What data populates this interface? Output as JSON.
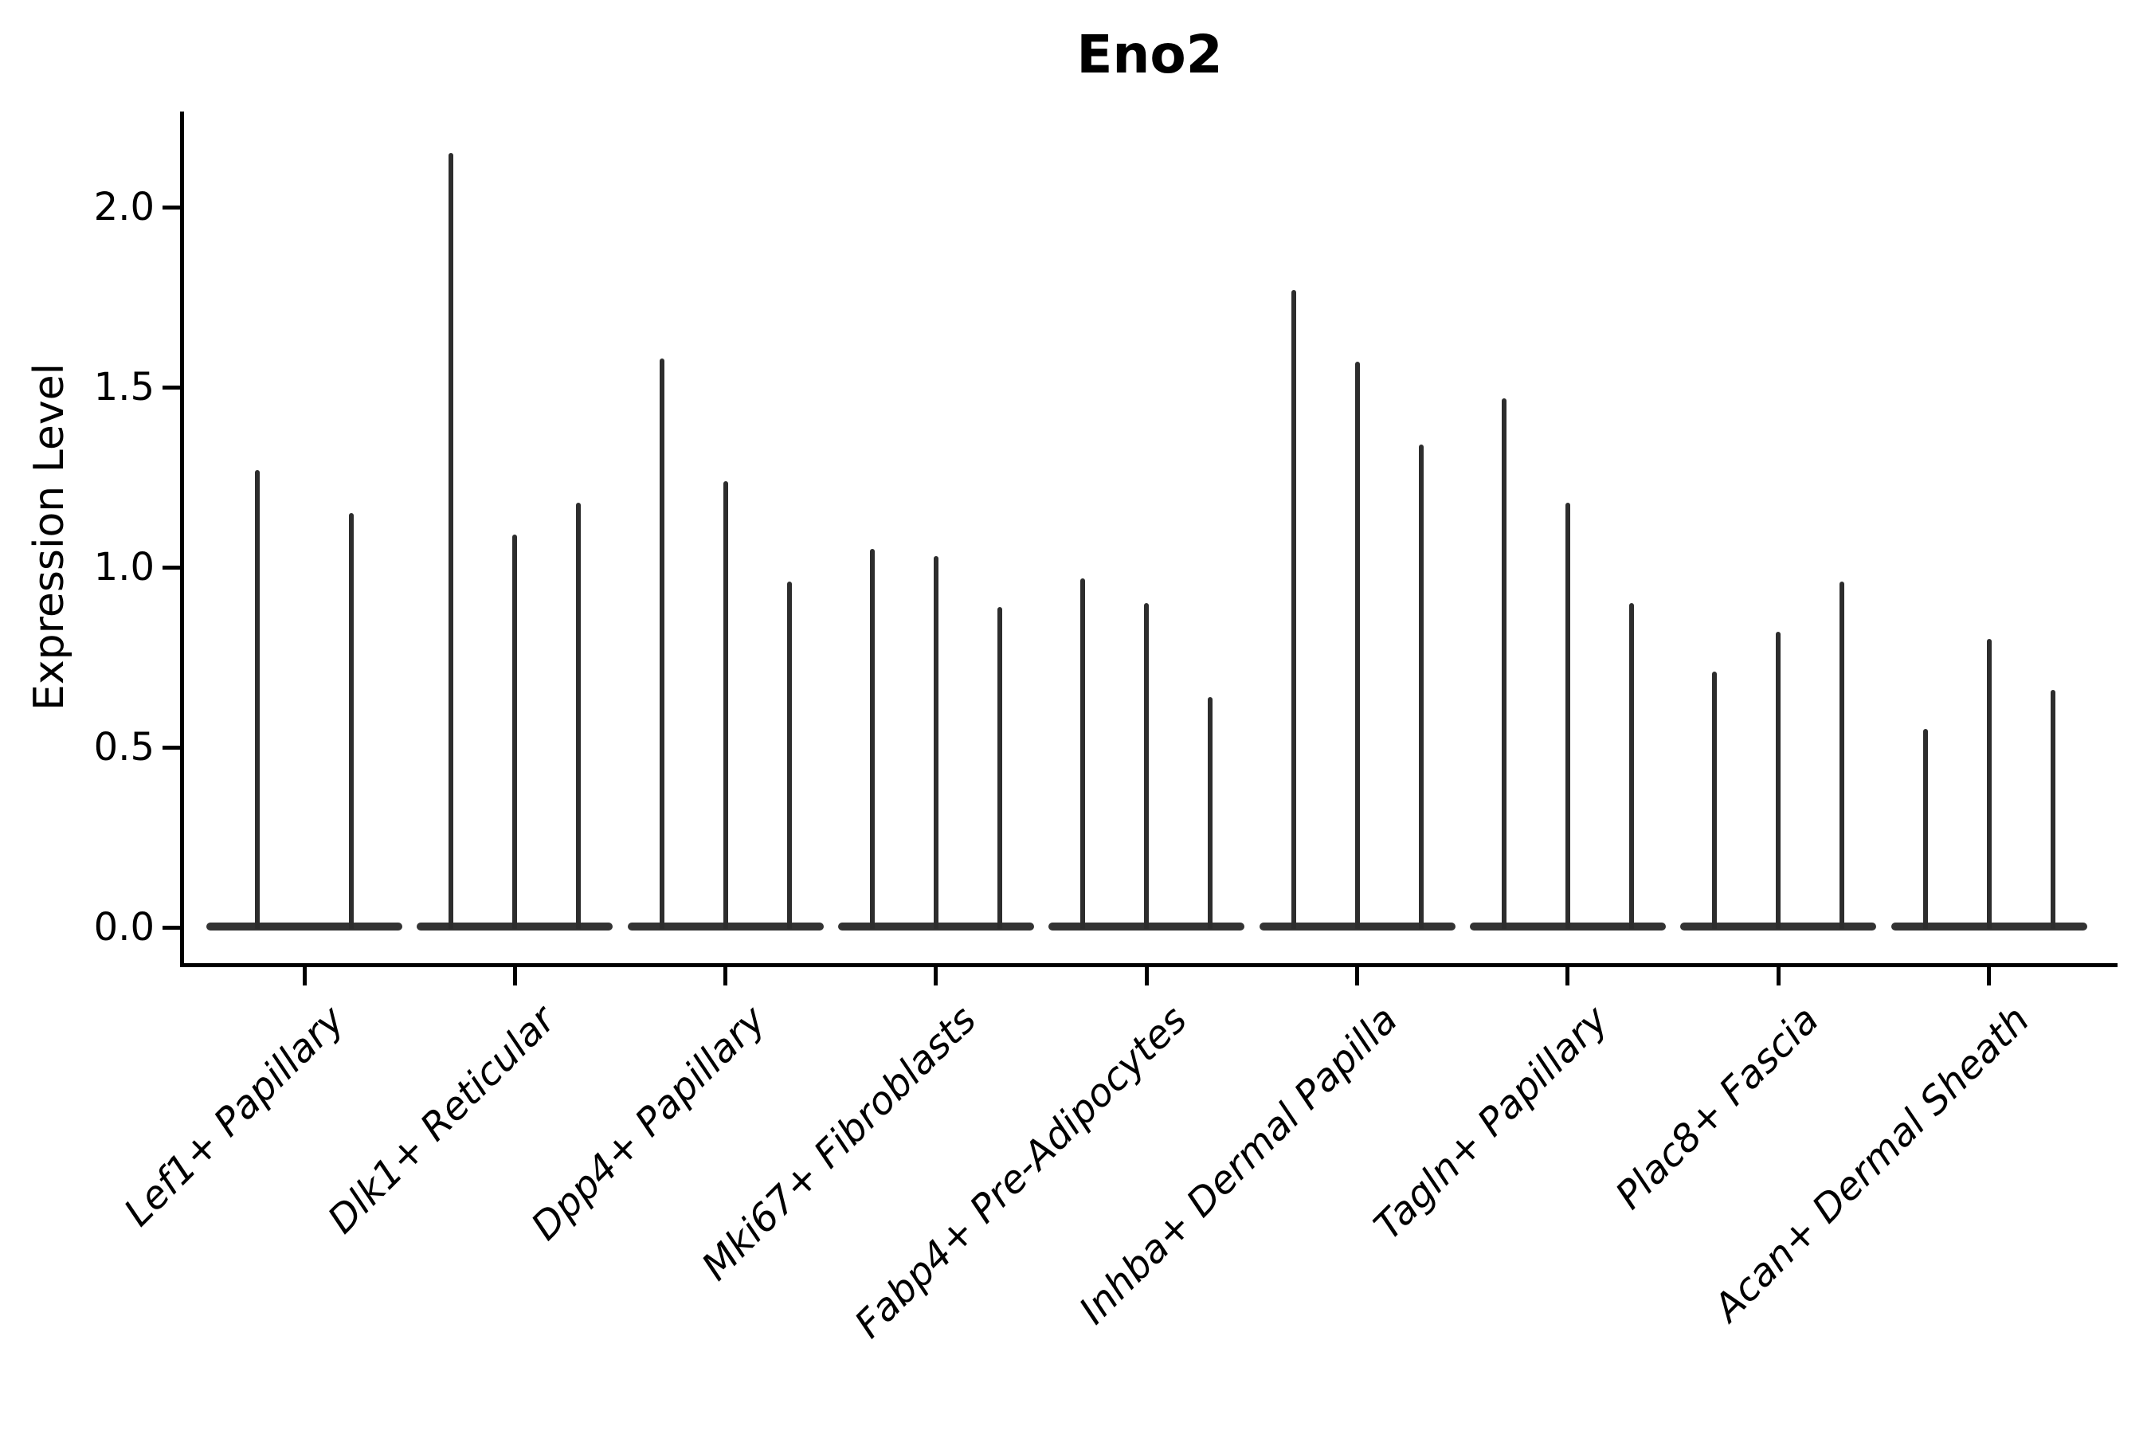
{
  "figure": {
    "title": "Eno2",
    "ylabel": "Expression Level"
  },
  "chart_data": {
    "type": "violin",
    "title": "Eno2",
    "xlabel": "",
    "ylabel": "Expression Level",
    "ylim": [
      0,
      2.27
    ],
    "grid": false,
    "legend": "none",
    "violin_color": "#2d2d2d",
    "axis_color": "#000000",
    "ytick_labels": [
      "0.0",
      "0.5",
      "1.0",
      "1.5",
      "2.0"
    ],
    "ytick_values": [
      0,
      0.5,
      1.0,
      1.5,
      2.0
    ],
    "categories": [
      "Lef1+ Papillary",
      "Dlk1+ Reticular",
      "Dpp4+ Papillary",
      "Mki67+ Fibroblasts",
      "Fabp4+ Pre-Adipocytes",
      "Inhba+ Dermal Papilla",
      "Tagln+ Papillary",
      "Plac8+ Fascia",
      "Acan+ Dermal Sheath"
    ],
    "description": "Violin plot of Eno2 expression; each cell-type group shows 2-3 needle-thin violins (flat base at 0 with a thin spike up to the max expression value).",
    "groups": [
      {
        "label": "Lef1+ Papillary",
        "peaks": [
          1.27,
          1.15
        ]
      },
      {
        "label": "Dlk1+ Reticular",
        "peaks": [
          2.15,
          1.09,
          1.18
        ]
      },
      {
        "label": "Dpp4+ Papillary",
        "peaks": [
          1.58,
          1.24,
          0.96
        ]
      },
      {
        "label": "Mki67+ Fibroblasts",
        "peaks": [
          1.05,
          1.03,
          0.89
        ]
      },
      {
        "label": "Fabp4+ Pre-Adipocytes",
        "peaks": [
          0.97,
          0.9,
          0.64
        ]
      },
      {
        "label": "Inhba+ Dermal Papilla",
        "peaks": [
          1.77,
          1.57,
          1.34
        ]
      },
      {
        "label": "Tagln+ Papillary",
        "peaks": [
          1.47,
          1.18,
          0.9
        ]
      },
      {
        "label": "Plac8+ Fascia",
        "peaks": [
          0.71,
          0.82,
          0.96
        ]
      },
      {
        "label": "Acan+ Dermal Sheath",
        "peaks": [
          0.55,
          0.8,
          0.66
        ]
      }
    ]
  }
}
